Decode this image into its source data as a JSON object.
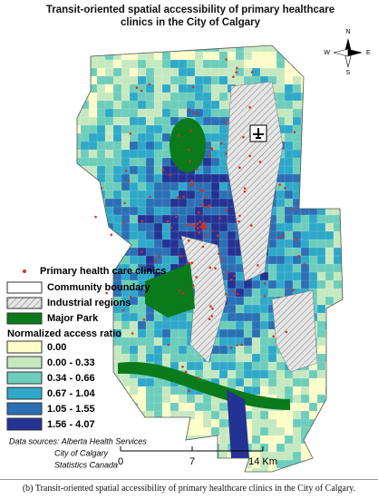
{
  "title": "Transit-oriented spatial accessibility of primary healthcare clinics in the City of Calgary",
  "compass": {
    "north": "N",
    "south": "S",
    "east": "E",
    "west": "W"
  },
  "legend": {
    "items": [
      "Primary health care clinics",
      "Community boundary",
      "Industrial regions",
      "Major Park"
    ],
    "ratio_title": "Normalized access ratio",
    "classes": [
      {
        "label": "0.00",
        "color": "#fdfdc9"
      },
      {
        "label": "0.00 - 0.33",
        "color": "#c5e8bf"
      },
      {
        "label": "0.34 - 0.66",
        "color": "#6ccdbb"
      },
      {
        "label": "0.67 - 1.04",
        "color": "#2ea8c9"
      },
      {
        "label": "1.05 - 1.55",
        "color": "#2b6fb4"
      },
      {
        "label": "1.56 - 4.07",
        "color": "#243294"
      }
    ]
  },
  "sources": [
    "Data sources: Alberta Health Services",
    "City of Calgary",
    "Statistics Canada"
  ],
  "scale": [
    "0",
    "7",
    "14 Km"
  ],
  "caption": "(b) Transit-oriented spatial accessibility of primary healthcare clinics in the City of Calgary."
}
